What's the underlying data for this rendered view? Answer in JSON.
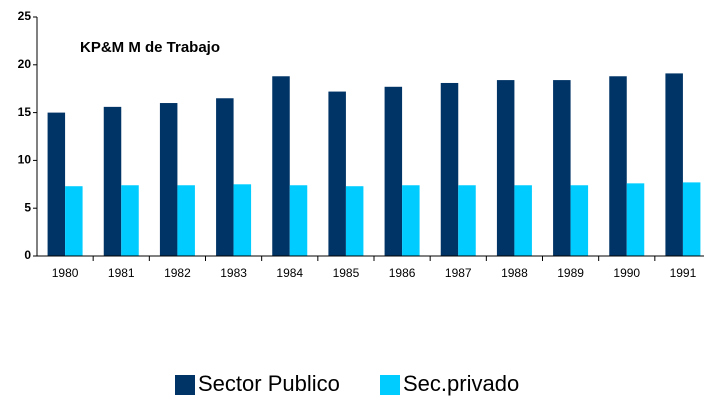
{
  "chart_data": {
    "type": "bar",
    "title": "KP&M M de Trabajo",
    "categories": [
      "1980",
      "1981",
      "1982",
      "1983",
      "1984",
      "1985",
      "1986",
      "1987",
      "1988",
      "1989",
      "1990",
      "1991"
    ],
    "series": [
      {
        "name": "Sector Publico",
        "color": "#003366",
        "values": [
          15.0,
          15.6,
          16.0,
          16.5,
          18.8,
          17.2,
          17.7,
          18.1,
          18.4,
          18.4,
          18.8,
          19.1
        ]
      },
      {
        "name": "Sec.privado",
        "color": "#00ccff",
        "values": [
          7.3,
          7.4,
          7.4,
          7.5,
          7.4,
          7.3,
          7.4,
          7.4,
          7.4,
          7.4,
          7.6,
          7.7
        ]
      }
    ],
    "ylim": [
      0,
      25
    ],
    "yticks": [
      0,
      5,
      10,
      15,
      20,
      25
    ],
    "grid": false,
    "legend": "bottom"
  }
}
